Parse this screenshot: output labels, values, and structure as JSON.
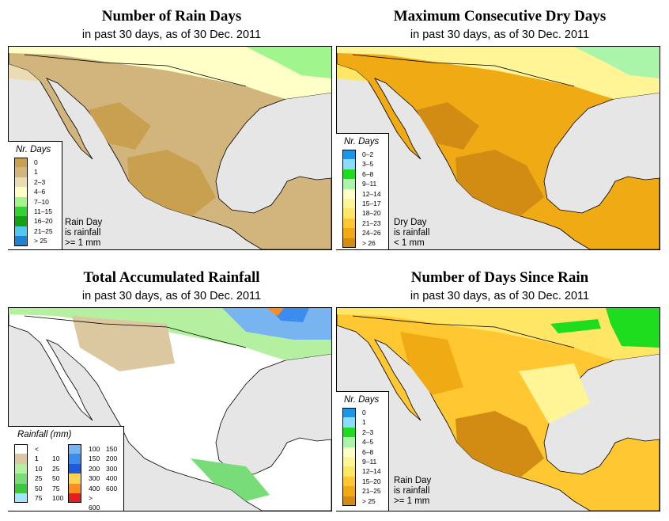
{
  "panels": {
    "rain_days": {
      "title": "Number of Rain Days",
      "subtitle": "in past 30 days, as of  30 Dec. 2011",
      "legend_title": "Nr. Days",
      "legend": [
        {
          "label": "0",
          "color": "#c8a050"
        },
        {
          "label": "1",
          "color": "#d2b47d"
        },
        {
          "label": "2–3",
          "color": "#ebdcb4"
        },
        {
          "label": "4–6",
          "color": "#ffffc8"
        },
        {
          "label": "7–10",
          "color": "#a0f58c"
        },
        {
          "label": "11–15",
          "color": "#32d232"
        },
        {
          "label": "16–20",
          "color": "#14a014"
        },
        {
          "label": "21–25",
          "color": "#50c8f0"
        },
        {
          "label": "> 25",
          "color": "#1e82d2"
        }
      ],
      "note": [
        "Rain Day",
        "is rainfall",
        ">= 1 mm"
      ]
    },
    "dry_days": {
      "title": "Maximum Consecutive Dry Days",
      "subtitle": "in past 30 days, as of  30 Dec. 2011",
      "legend_title": "Nr. Days",
      "legend": [
        {
          "label": "0–2",
          "color": "#1e96e6"
        },
        {
          "label": "3–5",
          "color": "#8cdcff"
        },
        {
          "label": "6–8",
          "color": "#1edc1e"
        },
        {
          "label": "9–11",
          "color": "#aaf5aa"
        },
        {
          "label": "12–14",
          "color": "#ffffc8"
        },
        {
          "label": "15–17",
          "color": "#fff596"
        },
        {
          "label": "18–20",
          "color": "#ffe664"
        },
        {
          "label": "21–23",
          "color": "#ffc832"
        },
        {
          "label": "24–26",
          "color": "#f0aa14"
        },
        {
          "label": "> 26",
          "color": "#d28c14"
        }
      ],
      "note": [
        "Dry Day",
        "is rainfall",
        "< 1 mm"
      ]
    },
    "total_rain": {
      "title": "Total Accumulated Rainfall",
      "subtitle": "in past 30 days, as of  30 Dec. 2011",
      "legend_title": "Rainfall (mm)",
      "legend_left": [
        {
          "lo": "< 1",
          "hi": "",
          "color": "#ffffff"
        },
        {
          "lo": "1",
          "hi": "10",
          "color": "#dcc8a0"
        },
        {
          "lo": "10",
          "hi": "25",
          "color": "#b4f0a0"
        },
        {
          "lo": "25",
          "hi": "50",
          "color": "#78dc78"
        },
        {
          "lo": "50",
          "hi": "75",
          "color": "#3cc83c"
        },
        {
          "lo": "75",
          "hi": "100",
          "color": "#a0e6ff"
        }
      ],
      "legend_right": [
        {
          "lo": "100",
          "hi": "150",
          "color": "#78b4f0"
        },
        {
          "lo": "150",
          "hi": "200",
          "color": "#3c8cf0"
        },
        {
          "lo": "200",
          "hi": "300",
          "color": "#1e5adc"
        },
        {
          "lo": "300",
          "hi": "400",
          "color": "#ffd250"
        },
        {
          "lo": "400",
          "hi": "600",
          "color": "#ff8c1e"
        },
        {
          "lo": "> 600",
          "hi": "",
          "color": "#e61e1e"
        }
      ]
    },
    "since_rain": {
      "title": "Number of Days Since Rain",
      "subtitle": "in past 30 days, as of  30 Dec. 2011",
      "legend_title": "Nr. Days",
      "legend": [
        {
          "label": "0",
          "color": "#1e96e6"
        },
        {
          "label": "1",
          "color": "#8cdcff"
        },
        {
          "label": "2–3",
          "color": "#1edc1e"
        },
        {
          "label": "4–5",
          "color": "#aaf5aa"
        },
        {
          "label": "6–8",
          "color": "#ffffc8"
        },
        {
          "label": "9–11",
          "color": "#fff596"
        },
        {
          "label": "12–14",
          "color": "#ffe664"
        },
        {
          "label": "15–20",
          "color": "#ffc832"
        },
        {
          "label": "21–25",
          "color": "#f0aa14"
        },
        {
          "label": "> 25",
          "color": "#d28c14"
        }
      ],
      "note": [
        "Rain Day",
        "is rainfall",
        ">= 1 mm"
      ]
    }
  },
  "colors": {
    "ocean": "#e6e6e6",
    "border": "#000000"
  }
}
